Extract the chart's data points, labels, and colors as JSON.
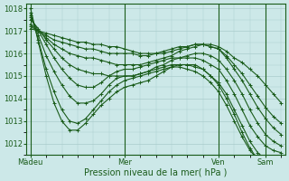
{
  "title": "",
  "xlabel": "Pression niveau de la mer( hPa )",
  "xtick_labels": [
    "Màdeu",
    "Mer",
    "Ven",
    "Sam"
  ],
  "xtick_positions": [
    0,
    48,
    96,
    120
  ],
  "ylim": [
    1011.5,
    1018.2
  ],
  "xlim": [
    -2,
    130
  ],
  "yticks": [
    1012,
    1013,
    1014,
    1015,
    1016,
    1017,
    1018
  ],
  "bg_color": "#cce8e8",
  "grid_color": "#aacccc",
  "line_color": "#1a5c1a",
  "marker": "+",
  "markersize": 3,
  "linewidth": 0.8,
  "series": [
    {
      "x": [
        0,
        4,
        8,
        12,
        16,
        20,
        24,
        28,
        32,
        36,
        40,
        44,
        48,
        52,
        56,
        60,
        64,
        68,
        72,
        76,
        80,
        84,
        88,
        92,
        96,
        100,
        104,
        108,
        112,
        116,
        120,
        124,
        128
      ],
      "y": [
        1017.1,
        1017.0,
        1016.9,
        1016.8,
        1016.7,
        1016.6,
        1016.5,
        1016.5,
        1016.4,
        1016.4,
        1016.3,
        1016.3,
        1016.2,
        1016.1,
        1016.0,
        1016.0,
        1016.0,
        1016.1,
        1016.2,
        1016.3,
        1016.3,
        1016.4,
        1016.4,
        1016.4,
        1016.3,
        1016.1,
        1015.8,
        1015.6,
        1015.3,
        1015.0,
        1014.6,
        1014.2,
        1013.8
      ]
    },
    {
      "x": [
        0,
        4,
        8,
        12,
        16,
        20,
        24,
        28,
        32,
        36,
        40,
        44,
        48,
        52,
        56,
        60,
        64,
        68,
        72,
        76,
        80,
        84,
        88,
        92,
        96,
        100,
        104,
        108,
        112,
        116,
        120,
        124,
        128
      ],
      "y": [
        1017.2,
        1017.0,
        1016.8,
        1016.6,
        1016.5,
        1016.4,
        1016.3,
        1016.2,
        1016.2,
        1016.1,
        1016.0,
        1016.0,
        1016.0,
        1016.0,
        1015.9,
        1015.9,
        1016.0,
        1016.0,
        1016.1,
        1016.2,
        1016.3,
        1016.4,
        1016.4,
        1016.3,
        1016.2,
        1015.9,
        1015.5,
        1015.1,
        1014.6,
        1014.1,
        1013.6,
        1013.2,
        1012.9
      ]
    },
    {
      "x": [
        0,
        4,
        8,
        12,
        16,
        20,
        24,
        28,
        32,
        36,
        40,
        44,
        48,
        52,
        56,
        60,
        64,
        68,
        72,
        76,
        80,
        84,
        88,
        92,
        96,
        100,
        104,
        108,
        112,
        116,
        120,
        124,
        128
      ],
      "y": [
        1017.3,
        1017.0,
        1016.7,
        1016.4,
        1016.2,
        1016.0,
        1015.9,
        1015.8,
        1015.8,
        1015.7,
        1015.6,
        1015.5,
        1015.5,
        1015.5,
        1015.5,
        1015.6,
        1015.7,
        1015.8,
        1015.9,
        1016.1,
        1016.2,
        1016.3,
        1016.4,
        1016.3,
        1016.2,
        1015.8,
        1015.3,
        1014.8,
        1014.2,
        1013.6,
        1013.1,
        1012.7,
        1012.4
      ]
    },
    {
      "x": [
        0,
        4,
        8,
        12,
        16,
        20,
        24,
        28,
        32,
        36,
        40,
        44,
        48,
        52,
        56,
        60,
        64,
        68,
        72,
        76,
        80,
        84,
        88,
        92,
        96,
        100,
        104,
        108,
        112,
        116,
        120,
        124,
        128
      ],
      "y": [
        1017.5,
        1017.1,
        1016.6,
        1016.2,
        1015.8,
        1015.5,
        1015.3,
        1015.2,
        1015.1,
        1015.1,
        1015.0,
        1015.0,
        1015.0,
        1015.0,
        1015.1,
        1015.2,
        1015.4,
        1015.5,
        1015.7,
        1015.8,
        1015.9,
        1016.0,
        1016.0,
        1015.9,
        1015.7,
        1015.3,
        1014.8,
        1014.2,
        1013.5,
        1012.9,
        1012.4,
        1012.1,
        1011.9
      ]
    },
    {
      "x": [
        0,
        4,
        8,
        12,
        16,
        20,
        24,
        28,
        32,
        36,
        40,
        44,
        48,
        52,
        56,
        60,
        64,
        68,
        72,
        76,
        80,
        84,
        88,
        92,
        96,
        100,
        104,
        108,
        112,
        116,
        120,
        124,
        128
      ],
      "y": [
        1017.6,
        1017.0,
        1016.4,
        1015.8,
        1015.3,
        1014.9,
        1014.6,
        1014.5,
        1014.5,
        1014.7,
        1015.0,
        1015.2,
        1015.3,
        1015.3,
        1015.4,
        1015.5,
        1015.6,
        1015.7,
        1015.8,
        1015.8,
        1015.8,
        1015.8,
        1015.7,
        1015.5,
        1015.3,
        1014.8,
        1014.2,
        1013.5,
        1012.8,
        1012.3,
        1011.9,
        1011.7,
        1011.6
      ]
    },
    {
      "x": [
        0,
        4,
        8,
        12,
        16,
        20,
        24,
        28,
        32,
        36,
        40,
        44,
        48,
        52,
        56,
        60,
        64,
        68,
        72,
        76,
        80,
        84,
        88,
        92,
        96,
        100,
        104,
        108,
        112,
        116,
        120,
        124,
        128
      ],
      "y": [
        1017.7,
        1016.8,
        1015.9,
        1015.2,
        1014.6,
        1014.1,
        1013.8,
        1013.8,
        1013.9,
        1014.2,
        1014.6,
        1014.9,
        1015.0,
        1015.0,
        1015.1,
        1015.2,
        1015.3,
        1015.4,
        1015.5,
        1015.5,
        1015.5,
        1015.4,
        1015.3,
        1015.0,
        1014.7,
        1014.2,
        1013.5,
        1012.8,
        1012.1,
        1011.6,
        1011.3,
        1011.2,
        1011.2
      ]
    },
    {
      "x": [
        0,
        4,
        8,
        12,
        16,
        20,
        24,
        28,
        32,
        36,
        40,
        44,
        48,
        52,
        56,
        60,
        64,
        68,
        72,
        76,
        80,
        84,
        88,
        92,
        96,
        100,
        104,
        108,
        112,
        116,
        120,
        124,
        128
      ],
      "y": [
        1017.8,
        1016.6,
        1015.3,
        1014.3,
        1013.5,
        1013.0,
        1012.9,
        1013.1,
        1013.5,
        1013.9,
        1014.3,
        1014.6,
        1014.8,
        1014.9,
        1015.0,
        1015.1,
        1015.2,
        1015.3,
        1015.4,
        1015.4,
        1015.3,
        1015.2,
        1015.0,
        1014.7,
        1014.3,
        1013.7,
        1013.0,
        1012.3,
        1011.7,
        1011.3,
        1011.0,
        1010.9,
        1010.9
      ]
    },
    {
      "x": [
        0,
        4,
        8,
        12,
        16,
        20,
        24,
        28,
        32,
        36,
        40,
        44,
        48,
        52,
        56,
        60,
        64,
        68,
        72,
        76,
        80,
        84,
        88,
        92,
        96,
        100,
        104,
        108,
        112,
        116,
        120,
        124,
        128
      ],
      "y": [
        1018.0,
        1016.5,
        1015.0,
        1013.8,
        1013.0,
        1012.6,
        1012.6,
        1012.9,
        1013.3,
        1013.7,
        1014.0,
        1014.3,
        1014.5,
        1014.6,
        1014.7,
        1014.8,
        1015.0,
        1015.2,
        1015.4,
        1015.5,
        1015.5,
        1015.5,
        1015.3,
        1015.0,
        1014.6,
        1014.0,
        1013.3,
        1012.5,
        1011.8,
        1011.3,
        1011.0,
        1010.8,
        1010.8
      ]
    }
  ]
}
